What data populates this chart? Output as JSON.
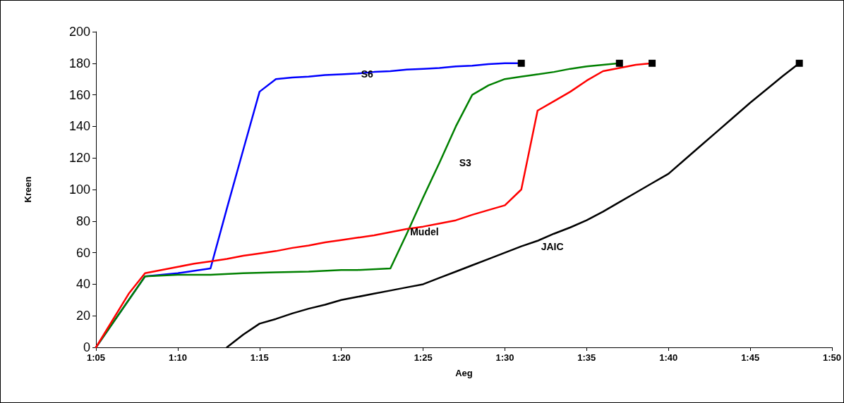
{
  "chart_data": {
    "type": "line",
    "xlabel": "Aeg",
    "ylabel": "Kreen",
    "xlim": [
      1.0833,
      1.8333
    ],
    "xticks": [
      {
        "value": 1.0833,
        "label": "1:05"
      },
      {
        "value": 1.1667,
        "label": "1:10"
      },
      {
        "value": 1.25,
        "label": "1:15"
      },
      {
        "value": 1.3333,
        "label": "1:20"
      },
      {
        "value": 1.4167,
        "label": "1:25"
      },
      {
        "value": 1.5,
        "label": "1:30"
      },
      {
        "value": 1.5833,
        "label": "1:35"
      },
      {
        "value": 1.6667,
        "label": "1:40"
      },
      {
        "value": 1.75,
        "label": "1:45"
      },
      {
        "value": 1.8333,
        "label": "1:50"
      }
    ],
    "ylim": [
      0,
      200
    ],
    "yticks": [
      0,
      20,
      40,
      60,
      80,
      100,
      120,
      140,
      160,
      180,
      200
    ],
    "grid": false,
    "legend": false,
    "line_style": "solid",
    "series": [
      {
        "name": "S6",
        "color": "#0000ff",
        "x": [
          1.0833,
          1.1333,
          1.1667,
          1.2,
          1.2167,
          1.2333,
          1.25,
          1.2667,
          1.2833,
          1.3,
          1.3167,
          1.3333,
          1.35,
          1.3667,
          1.3833,
          1.4,
          1.4167,
          1.4333,
          1.45,
          1.4667,
          1.4833,
          1.5,
          1.5167
        ],
        "values": [
          0,
          45,
          47,
          50,
          88,
          125,
          162,
          170,
          171,
          171.5,
          172.5,
          173,
          173.5,
          174.5,
          175,
          176,
          176.5,
          177,
          178,
          178.5,
          179.5,
          180,
          180
        ]
      },
      {
        "name": "S3",
        "color": "#008000",
        "x": [
          1.0833,
          1.1333,
          1.1667,
          1.2,
          1.2333,
          1.2667,
          1.3,
          1.3333,
          1.35,
          1.3833,
          1.4,
          1.4167,
          1.4333,
          1.45,
          1.4667,
          1.4833,
          1.5,
          1.5167,
          1.5333,
          1.55,
          1.5667,
          1.5833,
          1.6,
          1.6167
        ],
        "values": [
          0,
          45,
          46,
          46,
          47,
          47.5,
          48,
          49,
          49,
          50,
          72,
          95,
          117,
          140,
          160,
          166,
          170,
          171.5,
          173,
          174.5,
          176.5,
          178,
          179,
          180
        ]
      },
      {
        "name": "Mudel",
        "color": "#ff0000",
        "x": [
          1.0833,
          1.1167,
          1.1333,
          1.15,
          1.1667,
          1.1833,
          1.2,
          1.2167,
          1.2333,
          1.25,
          1.2667,
          1.2833,
          1.3,
          1.3167,
          1.3333,
          1.35,
          1.3667,
          1.3833,
          1.4,
          1.4167,
          1.4333,
          1.45,
          1.4667,
          1.4833,
          1.5,
          1.5167,
          1.5333,
          1.55,
          1.5667,
          1.5833,
          1.6,
          1.6167,
          1.6333,
          1.65
        ],
        "values": [
          0,
          34,
          47,
          49,
          51,
          53,
          54.5,
          56,
          58,
          59.5,
          61,
          63,
          64.5,
          66.5,
          68,
          69.5,
          71,
          73,
          75,
          76.5,
          78.5,
          80.5,
          84,
          87,
          90,
          100,
          150,
          156,
          162,
          169,
          175,
          177,
          179,
          180
        ]
      },
      {
        "name": "JAIC",
        "color": "#000000",
        "x": [
          1.2167,
          1.2333,
          1.25,
          1.2667,
          1.2833,
          1.3,
          1.3167,
          1.3333,
          1.35,
          1.3667,
          1.3833,
          1.4,
          1.4167,
          1.4333,
          1.45,
          1.4667,
          1.4833,
          1.5,
          1.5167,
          1.5333,
          1.55,
          1.5667,
          1.5833,
          1.6,
          1.6167,
          1.6333,
          1.65,
          1.6667,
          1.6833,
          1.7,
          1.7167,
          1.7333,
          1.75,
          1.7667,
          1.7833,
          1.8
        ],
        "values": [
          0,
          8,
          15,
          18,
          21.5,
          24.5,
          27,
          30,
          32,
          34,
          36,
          38,
          40,
          44,
          48,
          52,
          56,
          60,
          64,
          67.5,
          72,
          76,
          80.5,
          86,
          92,
          98,
          104,
          110,
          119,
          128,
          137,
          146,
          155,
          163.5,
          172,
          180
        ]
      }
    ]
  }
}
